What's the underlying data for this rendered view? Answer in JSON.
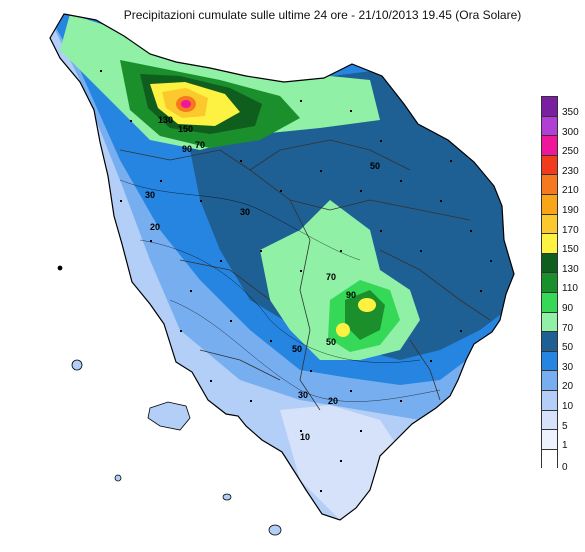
{
  "title": "Precipitazioni cumulate sulle ultime 24 ore - 21/10/2013 19.45 (Ora Solare)",
  "legend": {
    "classes": [
      {
        "label": "350",
        "color": "#7a1fa0"
      },
      {
        "label": "300",
        "color": "#b13fd6"
      },
      {
        "label": "250",
        "color": "#f0169a"
      },
      {
        "label": "230",
        "color": "#f23a1c"
      },
      {
        "label": "210",
        "color": "#f6791f"
      },
      {
        "label": "190",
        "color": "#f8a517"
      },
      {
        "label": "170",
        "color": "#fbc92d"
      },
      {
        "label": "150",
        "color": "#fdf241"
      },
      {
        "label": "130",
        "color": "#0f5e1e"
      },
      {
        "label": "110",
        "color": "#1a8f2c"
      },
      {
        "label": "90",
        "color": "#36d957"
      },
      {
        "label": "70",
        "color": "#8ff0a6"
      },
      {
        "label": "50",
        "color": "#1e5f94"
      },
      {
        "label": "30",
        "color": "#2585e0"
      },
      {
        "label": "20",
        "color": "#77aef0"
      },
      {
        "label": "10",
        "color": "#b3cef7"
      },
      {
        "label": "5",
        "color": "#d5e2fa"
      },
      {
        "label": "1",
        "color": "#eef2fd"
      },
      {
        "label": "",
        "color": "#ffffff"
      }
    ],
    "bottom_label": "0"
  },
  "isoline_labels": [
    "90",
    "50",
    "70",
    "30",
    "20",
    "30",
    "50",
    "90",
    "70",
    "50",
    "30",
    "20",
    "10",
    "130",
    "150"
  ]
}
